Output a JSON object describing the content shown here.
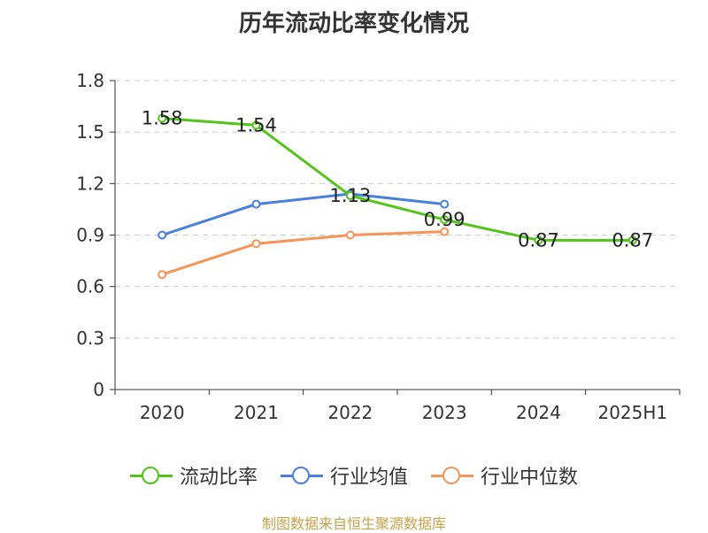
{
  "chart_data": {
    "type": "line",
    "title": "历年流动比率变化情况",
    "categories": [
      "2020",
      "2021",
      "2022",
      "2023",
      "2024",
      "2025H1"
    ],
    "ylim": [
      0,
      1.8
    ],
    "yticks": [
      "0",
      "0.3",
      "0.6",
      "0.9",
      "1.2",
      "1.5",
      "1.8"
    ],
    "grid": true,
    "legend_position": "bottom",
    "series": [
      {
        "name": "流动比率",
        "color": "#52c41a",
        "values": [
          1.58,
          1.54,
          1.13,
          0.99,
          0.87,
          0.87
        ],
        "labels": [
          "1.58",
          "1.54",
          "1.13",
          "0.99",
          "0.87",
          "0.87"
        ]
      },
      {
        "name": "行业均值",
        "color": "#4a7fdc",
        "values": [
          0.9,
          1.08,
          1.14,
          1.08,
          null,
          null
        ]
      },
      {
        "name": "行业中位数",
        "color": "#f79459",
        "values": [
          0.67,
          0.85,
          0.9,
          0.92,
          null,
          null
        ]
      }
    ]
  },
  "footer": "制图数据来自恒生聚源数据库"
}
